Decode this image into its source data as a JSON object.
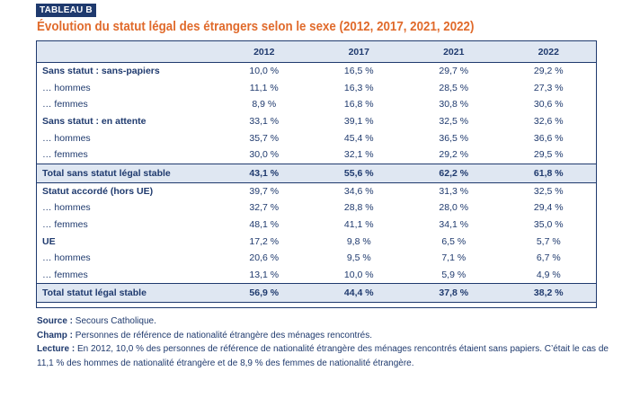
{
  "tag": "TABLEAU B",
  "title": "Évolution du statut légal des étrangers selon le sexe (2012, 2017, 2021, 2022)",
  "table": {
    "columns": [
      "",
      "2012",
      "2017",
      "2021",
      "2022"
    ],
    "rows": [
      {
        "type": "group",
        "label": "Sans statut : sans-papiers",
        "values": [
          "10,0 %",
          "16,5 %",
          "29,7 %",
          "29,2 %"
        ]
      },
      {
        "type": "sub",
        "label": "… hommes",
        "values": [
          "11,1 %",
          "16,3 %",
          "28,5 %",
          "27,3 %"
        ]
      },
      {
        "type": "sub",
        "label": "… femmes",
        "values": [
          "8,9 %",
          "16,8 %",
          "30,8 %",
          "30,6 %"
        ]
      },
      {
        "type": "group",
        "label": "Sans statut : en attente",
        "values": [
          "33,1 %",
          "39,1 %",
          "32,5 %",
          "32,6 %"
        ]
      },
      {
        "type": "sub",
        "label": "… hommes",
        "values": [
          "35,7 %",
          "45,4 %",
          "36,5 %",
          "36,6 %"
        ]
      },
      {
        "type": "sub",
        "label": "… femmes",
        "values": [
          "30,0 %",
          "32,1 %",
          "29,2 %",
          "29,5 %"
        ]
      },
      {
        "type": "total",
        "label": "Total sans statut légal stable",
        "values": [
          "43,1 %",
          "55,6 %",
          "62,2 %",
          "61,8 %"
        ]
      },
      {
        "type": "group",
        "label": "Statut accordé (hors UE)",
        "values": [
          "39,7 %",
          "34,6 %",
          "31,3 %",
          "32,5 %"
        ]
      },
      {
        "type": "sub",
        "label": "… hommes",
        "values": [
          "32,7 %",
          "28,8 %",
          "28,0 %",
          "29,4 %"
        ]
      },
      {
        "type": "sub",
        "label": "… femmes",
        "values": [
          "48,1 %",
          "41,1 %",
          "34,1 %",
          "35,0 %"
        ]
      },
      {
        "type": "group",
        "label": "UE",
        "values": [
          "17,2 %",
          "9,8 %",
          "6,5 %",
          "5,7 %"
        ]
      },
      {
        "type": "sub",
        "label": "… hommes",
        "values": [
          "20,6 %",
          "9,5 %",
          "7,1 %",
          "6,7 %"
        ]
      },
      {
        "type": "sub",
        "label": "… femmes",
        "values": [
          "13,1 %",
          "10,0 %",
          "5,9 %",
          "4,9 %"
        ]
      },
      {
        "type": "total",
        "label": "Total statut légal stable",
        "values": [
          "56,9 %",
          "44,4 %",
          "37,8 %",
          "38,2 %"
        ]
      }
    ]
  },
  "notes": {
    "source_label": "Source :",
    "source_text": " Secours Catholique.",
    "champ_label": "Champ :",
    "champ_text": " Personnes de référence de nationalité étrangère des ménages rencontrés.",
    "lecture_label": "Lecture :",
    "lecture_text": " En 2012, 10,0 % des personnes de référence de nationalité étrangère des ménages rencontrés étaient sans papiers. C’était le cas de 11,1 % des hommes de nationalité étrangère et de 8,9 % des femmes de nationalité étrangère."
  }
}
